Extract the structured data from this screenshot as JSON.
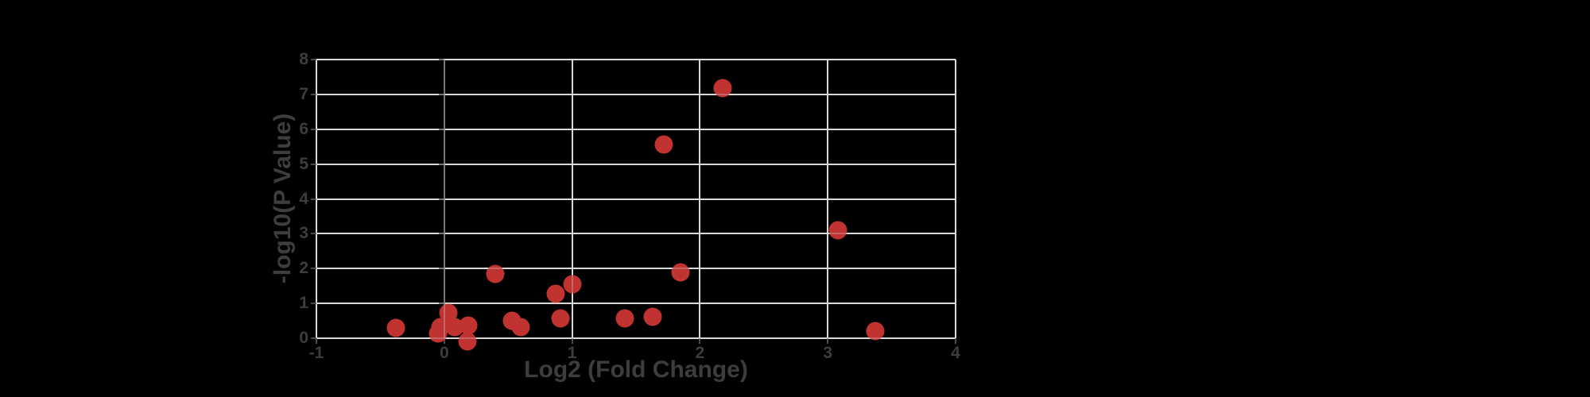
{
  "chart_data": {
    "type": "scatter",
    "title": "",
    "xlabel": "Log2 (Fold Change)",
    "ylabel": "-log10(P Value)",
    "xlim": [
      -1,
      4
    ],
    "ylim": [
      0,
      8
    ],
    "x_ticks": [
      -1,
      0,
      1,
      2,
      3,
      4
    ],
    "y_ticks": [
      0,
      1,
      2,
      3,
      4,
      5,
      6,
      7,
      8
    ],
    "grid": true,
    "legend": false,
    "zero_x_axis_line": true,
    "series": [
      {
        "name": "points",
        "marker": "circle",
        "marker_size_px": 23,
        "points": [
          [
            -0.38,
            0.3
          ],
          [
            0.03,
            0.72
          ],
          [
            -0.03,
            0.33
          ],
          [
            -0.05,
            0.14
          ],
          [
            0.08,
            0.33
          ],
          [
            0.19,
            0.36
          ],
          [
            0.18,
            -0.08
          ],
          [
            0.4,
            1.85
          ],
          [
            0.53,
            0.5
          ],
          [
            0.6,
            0.33
          ],
          [
            0.91,
            0.57
          ],
          [
            0.87,
            1.27
          ],
          [
            1.0,
            1.55
          ],
          [
            1.41,
            0.57
          ],
          [
            1.63,
            0.62
          ],
          [
            1.85,
            1.9
          ],
          [
            1.72,
            5.55
          ],
          [
            2.18,
            7.18
          ],
          [
            3.08,
            3.1
          ],
          [
            3.37,
            0.2
          ]
        ]
      }
    ],
    "colors": {
      "background": "#000000",
      "gridline": "#d9d9d9",
      "zero_axis": "#4d4d4d",
      "tick_mark": "#4d4d4d",
      "axis_text": "#3d3d3d",
      "point": "#c13331"
    }
  }
}
